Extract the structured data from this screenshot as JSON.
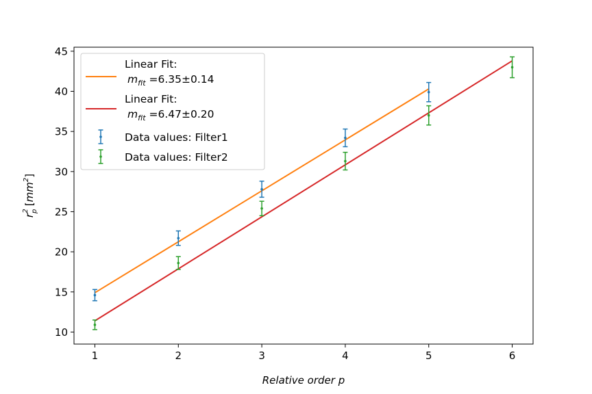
{
  "chart_data": {
    "type": "scatter",
    "xlabel": "Relative order p",
    "ylabel": "r_p^2 [mm^2]",
    "ylabel_parts": {
      "base": "r",
      "sub": "p",
      "sup": "2",
      "unit_open": "[",
      "unit": "mm",
      "unit_sup": "2",
      "unit_close": "]"
    },
    "xlim": [
      0.75,
      6.25
    ],
    "ylim": [
      8.5,
      45.5
    ],
    "xticks": [
      1,
      2,
      3,
      4,
      5,
      6
    ],
    "yticks": [
      10,
      15,
      20,
      25,
      30,
      35,
      40,
      45
    ],
    "xtick_labels": [
      "1",
      "2",
      "3",
      "4",
      "5",
      "6"
    ],
    "ytick_labels": [
      "10",
      "15",
      "20",
      "25",
      "30",
      "35",
      "40",
      "45"
    ],
    "grid": false,
    "legend_position": "upper-left",
    "series": [
      {
        "kind": "errorbar",
        "name": "Data values: Filter1",
        "color": "#1f77b4",
        "x": [
          1,
          2,
          3,
          4,
          5
        ],
        "y": [
          14.6,
          21.7,
          27.8,
          34.2,
          39.9
        ],
        "yerr": [
          0.7,
          0.9,
          1.0,
          1.1,
          1.2
        ]
      },
      {
        "kind": "errorbar",
        "name": "Data values: Filter2",
        "color": "#2ca02c",
        "x": [
          1,
          2,
          3,
          4,
          5,
          6
        ],
        "y": [
          10.9,
          18.6,
          25.4,
          31.3,
          37.0,
          43.0
        ],
        "yerr": [
          0.6,
          0.8,
          0.9,
          1.1,
          1.2,
          1.3
        ]
      },
      {
        "kind": "line",
        "name_line1": "Linear Fit:",
        "name_sym": "m",
        "name_sub": "fit",
        "name_value": "=6.35±0.14",
        "color": "#ff7f0e",
        "x": [
          1,
          5
        ],
        "y": [
          14.9,
          40.3
        ]
      },
      {
        "kind": "line",
        "name_line1": "Linear Fit:",
        "name_sym": "m",
        "name_sub": "fit",
        "name_value": "=6.47±0.20",
        "color": "#d62728",
        "x": [
          1,
          6
        ],
        "y": [
          11.4,
          43.8
        ]
      }
    ]
  }
}
